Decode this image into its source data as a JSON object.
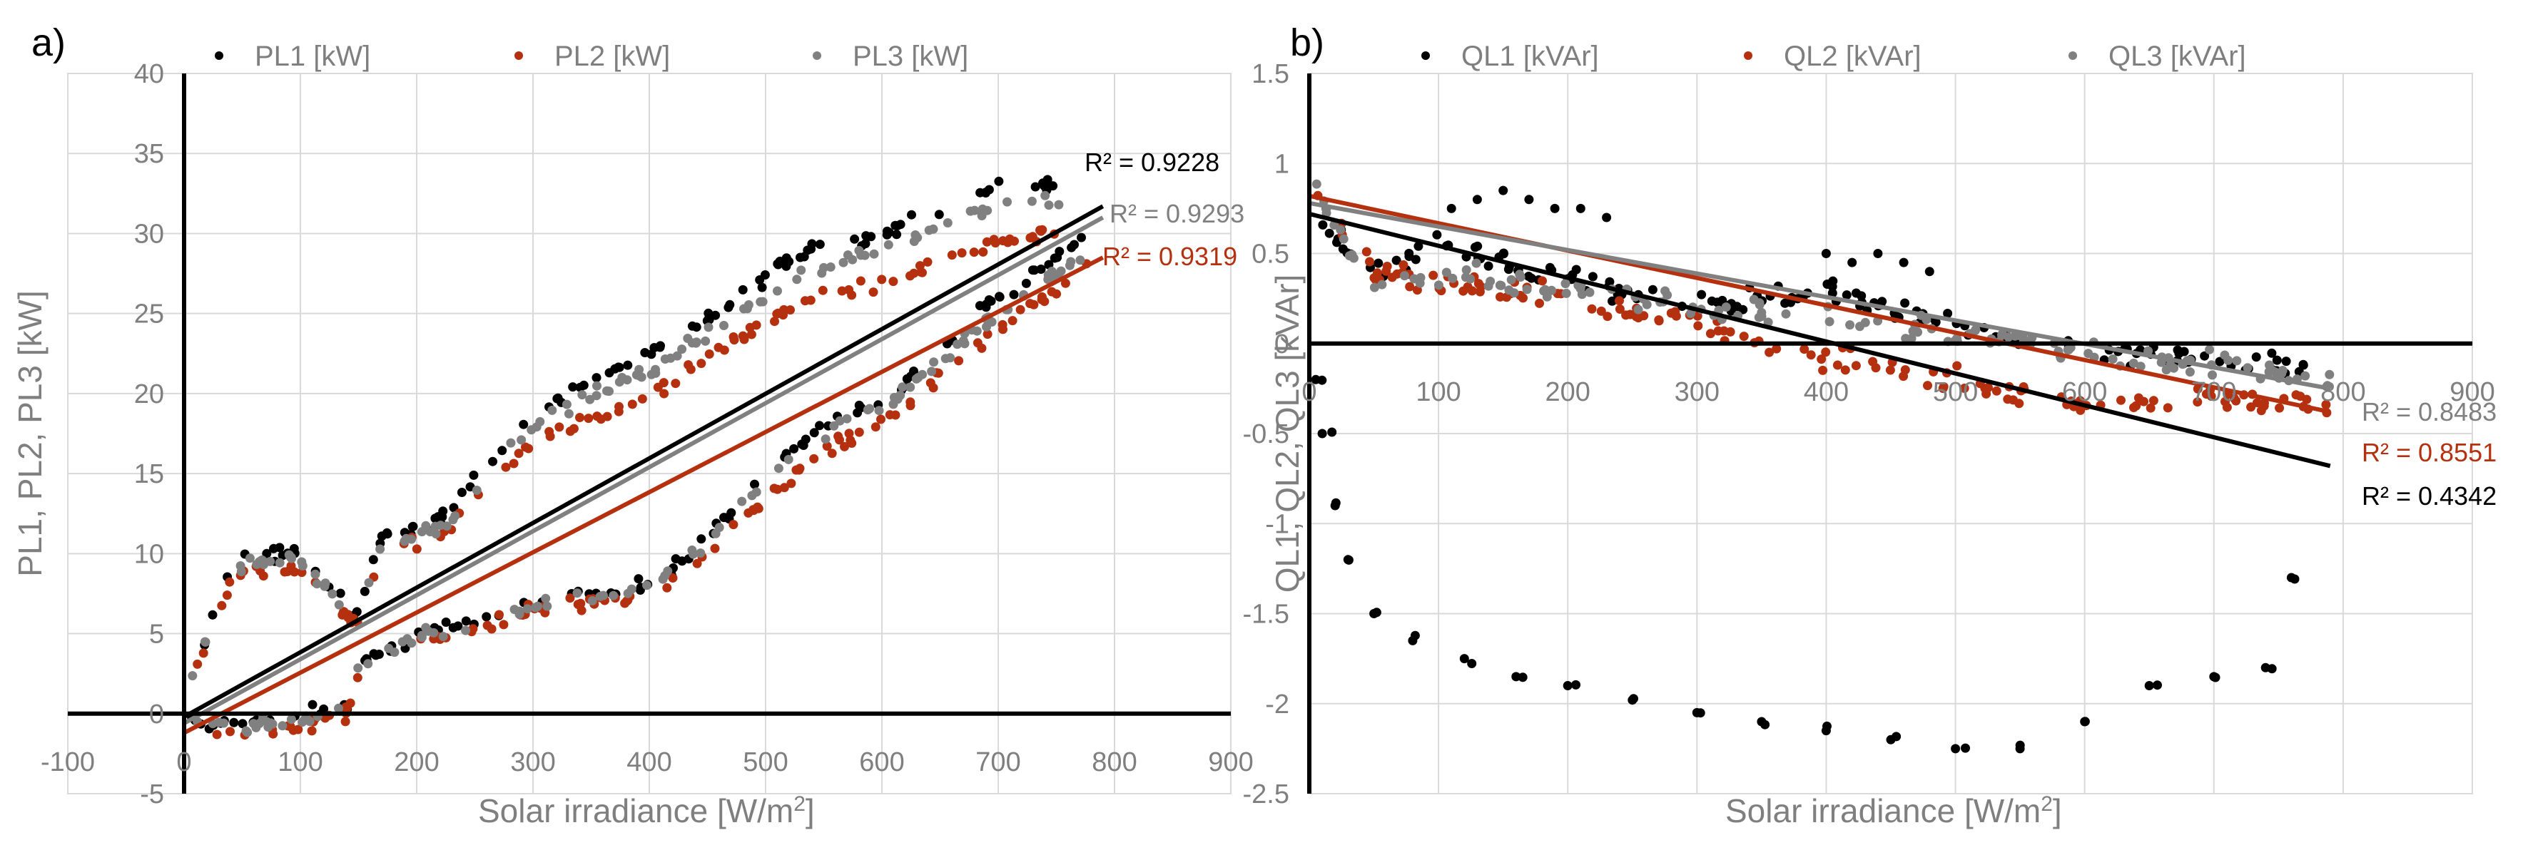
{
  "colors": {
    "s1": "#000000",
    "s2": "#B5300E",
    "s3": "#808080",
    "grid": "#D9D9D9",
    "tick": "#7F7F7F"
  },
  "chart_data": [
    {
      "panel_label": "a)",
      "type": "scatter",
      "xlabel": "Solar irradiance  [W/m",
      "xlabel_sup": "2",
      "xlabel_end": "]",
      "ylabel": "PL1, PL2, PL3 [kW]",
      "xlim": [
        -100,
        900
      ],
      "ylim": [
        -5,
        40
      ],
      "xticks": [
        -100,
        0,
        100,
        200,
        300,
        400,
        500,
        600,
        700,
        800,
        900
      ],
      "yticks": [
        -5,
        0,
        5,
        10,
        15,
        20,
        25,
        30,
        35,
        40
      ],
      "tick_labels_x": [
        "-100",
        "0",
        "100",
        "200",
        "300",
        "400",
        "500",
        "600",
        "700",
        "800",
        "900"
      ],
      "tick_labels_y": [
        "-5",
        "0",
        "5",
        "10",
        "15",
        "20",
        "25",
        "30",
        "35",
        "40"
      ],
      "legend": [
        "PL1 [kW]",
        "PL2 [kW]",
        "PL3 [kW]"
      ],
      "series": [
        {
          "name": "PL1 [kW]",
          "color": "#000000",
          "upper": {
            "x": [
              5,
              30,
              40,
              55,
              100,
              150,
              170,
              220,
              300,
              400,
              480,
              520,
              600,
              700,
              760
            ],
            "y": [
              2,
              7,
              9,
              10,
              10,
              6,
              11,
              12,
              19,
              22.5,
              26,
              28.5,
              30,
              33,
              33
            ]
          },
          "lower": {
            "x": [
              5,
              20,
              60,
              100,
              140,
              150,
              200,
              240,
              300,
              400,
              450,
              500,
              550,
              620,
              680,
              740,
              780
            ],
            "y": [
              0,
              -0.5,
              -0.5,
              0,
              0.5,
              3,
              5,
              5.5,
              7,
              8,
              11,
              15,
              18,
              20.5,
              25,
              28,
              30
            ]
          },
          "trend": {
            "x": [
              0,
              790
            ],
            "y": [
              -0.2,
              31.7
            ]
          },
          "r2_label": "R² = 0.9228"
        },
        {
          "name": "PL2 [kW]",
          "color": "#B5300E",
          "upper": {
            "x": [
              5,
              30,
              40,
              55,
              100,
              150,
              170,
              220,
              300,
              400,
              480,
              520,
              600,
              700,
              760
            ],
            "y": [
              1.5,
              6.3,
              8.2,
              9,
              9,
              5.5,
              10,
              11,
              17,
              20,
              23.5,
              25.5,
              27,
              29.5,
              30
            ]
          },
          "lower": {
            "x": [
              5,
              20,
              60,
              100,
              140,
              150,
              200,
              240,
              300,
              400,
              450,
              500,
              550,
              620,
              680,
              740,
              780
            ],
            "y": [
              -1,
              -1.2,
              -1.2,
              -0.8,
              0,
              2.5,
              4.5,
              5,
              6.5,
              7.5,
              10,
              13.5,
              16.5,
              19,
              23,
              26,
              28
            ]
          },
          "trend": {
            "x": [
              0,
              790
            ],
            "y": [
              -1.2,
              28.5
            ]
          },
          "r2_label": "R² = 0.9319"
        },
        {
          "name": "PL3 [kW]",
          "color": "#808080",
          "upper": {
            "x": [
              5,
              30,
              40,
              55,
              100,
              150,
              170,
              220,
              300,
              400,
              480,
              520,
              600,
              700,
              760
            ],
            "y": [
              1.8,
              6.8,
              8.7,
              9.5,
              9.5,
              5.8,
              10.5,
              11.5,
              18,
              21.5,
              25,
              27,
              29,
              32,
              32
            ]
          },
          "lower": {
            "x": [
              5,
              20,
              60,
              100,
              140,
              150,
              200,
              240,
              300,
              400,
              450,
              500,
              550,
              620,
              680,
              740,
              780
            ],
            "y": [
              -0.5,
              -0.9,
              -0.9,
              -0.4,
              0.3,
              2.8,
              4.8,
              5.3,
              6.8,
              7.8,
              10.5,
              14.5,
              17.5,
              20,
              24,
              27,
              29
            ]
          },
          "trend": {
            "x": [
              0,
              790
            ],
            "y": [
              -0.6,
              31
            ]
          },
          "r2_label": "R² = 0.9293"
        }
      ]
    },
    {
      "panel_label": "b)",
      "type": "scatter",
      "xlabel": "Solar irradiance  [W/m",
      "xlabel_sup": "2",
      "xlabel_end": "]",
      "ylabel": "QL1, QL2, QL3 [kVAr]",
      "xlim": [
        0,
        900
      ],
      "ylim": [
        -2.5,
        1.5
      ],
      "xticks": [
        0,
        100,
        200,
        300,
        400,
        500,
        600,
        700,
        800,
        900
      ],
      "yticks": [
        -2.5,
        -2,
        -1.5,
        -1,
        -0.5,
        0,
        0.5,
        1,
        1.5
      ],
      "tick_labels_x": [
        "0",
        "100",
        "200",
        "300",
        "400",
        "500",
        "600",
        "700",
        "800",
        "900"
      ],
      "tick_labels_y": [
        "-2.5",
        "-2",
        "-1.5",
        "-1",
        "-0.5",
        "0",
        "0.5",
        "1",
        "1.5"
      ],
      "legend": [
        "QL1 [kVAr]",
        "QL2 [kVAr]",
        "QL3 [kVAr]"
      ],
      "series": [
        {
          "name": "QL1 [kVAr]",
          "color": "#000000",
          "band": {
            "x": [
              5,
              50,
              100,
              200,
              300,
              400,
              500,
              600,
              700,
              790
            ],
            "y": [
              0.7,
              0.4,
              0.55,
              0.35,
              0.2,
              0.3,
              0.1,
              -0.05,
              -0.1,
              -0.15
            ]
          },
          "outliers": {
            "x": [
              110,
              130,
              150,
              170,
              190,
              210,
              230,
              400,
              420,
              440,
              460,
              480
            ],
            "y": [
              0.75,
              0.8,
              0.85,
              0.8,
              0.75,
              0.75,
              0.7,
              0.5,
              0.45,
              0.5,
              0.45,
              0.4
            ]
          },
          "arc": {
            "x": [
              5,
              10,
              20,
              30,
              50,
              80,
              120,
              160,
              200,
              250,
              300,
              350,
              400,
              450,
              500,
              550,
              600,
              650,
              700,
              740,
              760
            ],
            "y": [
              -0.2,
              -0.5,
              -0.9,
              -1.2,
              -1.5,
              -1.65,
              -1.75,
              -1.85,
              -1.9,
              -1.98,
              -2.05,
              -2.1,
              -2.15,
              -2.2,
              -2.25,
              -2.25,
              -2.1,
              -1.9,
              -1.85,
              -1.8,
              -1.3
            ]
          },
          "trend": {
            "x": [
              0,
              790
            ],
            "y": [
              0.72,
              -0.68
            ]
          },
          "r2_label": "R² = 0.4342"
        },
        {
          "name": "QL2 [kVAr]",
          "color": "#B5300E",
          "band": {
            "x": [
              5,
              50,
              100,
              200,
              300,
              400,
              500,
              600,
              700,
              790
            ],
            "y": [
              0.9,
              0.4,
              0.35,
              0.25,
              0.1,
              -0.1,
              -0.2,
              -0.35,
              -0.3,
              -0.35
            ]
          },
          "trend": {
            "x": [
              0,
              790
            ],
            "y": [
              0.82,
              -0.38
            ]
          },
          "r2_label": "R² = 0.8551"
        },
        {
          "name": "QL3 [kVAr]",
          "color": "#808080",
          "band": {
            "x": [
              5,
              50,
              100,
              200,
              300,
              400,
              500,
              600,
              700,
              790
            ],
            "y": [
              0.85,
              0.3,
              0.4,
              0.3,
              0.2,
              0.15,
              0.05,
              -0.05,
              -0.1,
              -0.2
            ]
          },
          "trend": {
            "x": [
              0,
              790
            ],
            "y": [
              0.78,
              -0.25
            ]
          },
          "r2_label": "R² = 0.8483"
        }
      ]
    }
  ]
}
